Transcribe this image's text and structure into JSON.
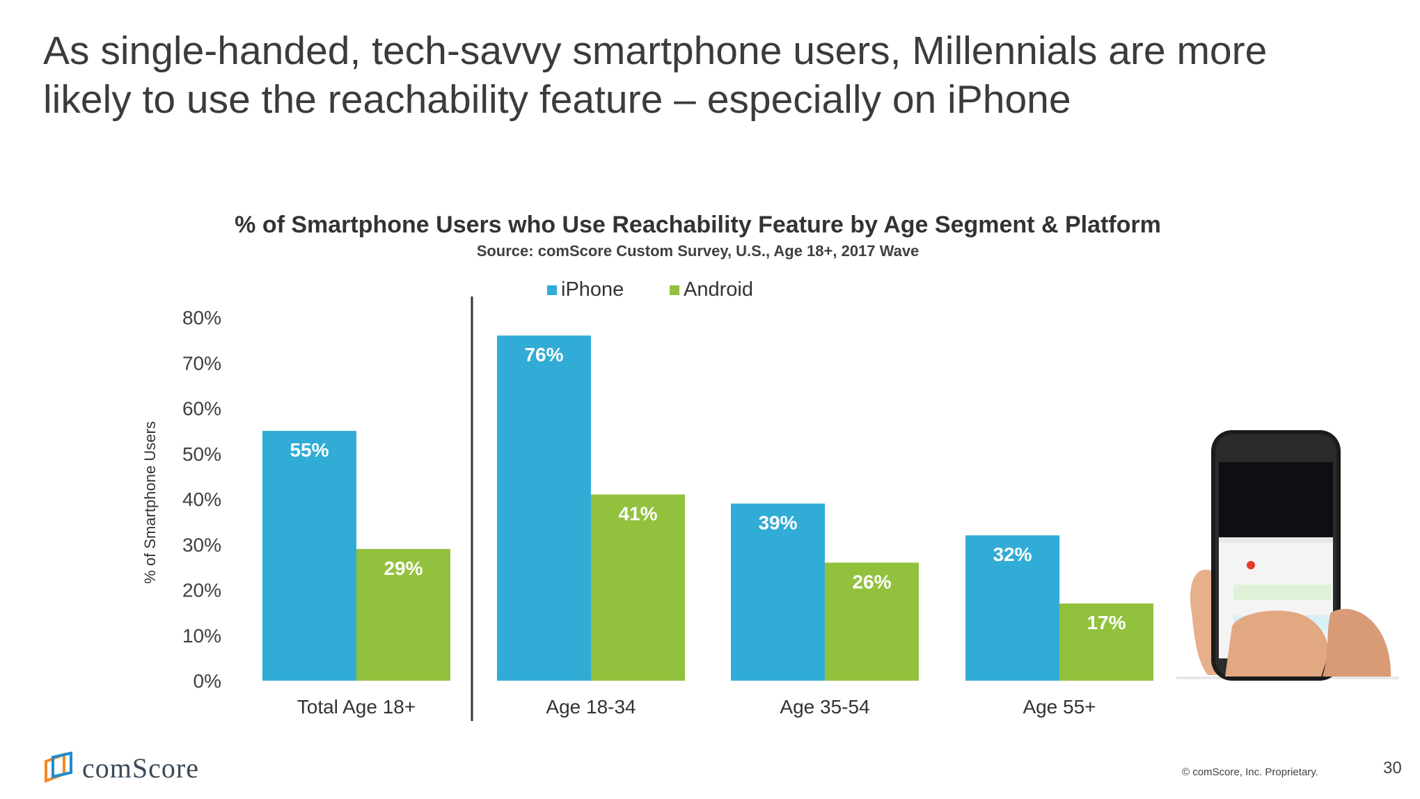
{
  "slide": {
    "title": "As single-handed, tech-savvy smartphone users, Millennials are more likely to use the reachability feature – especially on iPhone",
    "page_number": "30",
    "copyright": "© comScore, Inc. Proprietary.",
    "logo_text": "comScore"
  },
  "colors": {
    "iphone": "#31acd6",
    "android": "#92c13e"
  },
  "chart_data": {
    "type": "bar",
    "title": "% of Smartphone Users who Use Reachability Feature by Age Segment & Platform",
    "subtitle": "Source: comScore Custom Survey, U.S., Age 18+, 2017 Wave",
    "ylabel": "% of Smartphone Users",
    "xlabel": "",
    "ylim": [
      0,
      80
    ],
    "yticks": [
      "0%",
      "10%",
      "20%",
      "30%",
      "40%",
      "50%",
      "60%",
      "70%",
      "80%"
    ],
    "categories": [
      "Total Age 18+",
      "Age 18-34",
      "Age 35-54",
      "Age 55+"
    ],
    "series": [
      {
        "name": "iPhone",
        "values": [
          55,
          76,
          39,
          32
        ],
        "labels": [
          "55%",
          "76%",
          "39%",
          "32%"
        ]
      },
      {
        "name": "Android",
        "values": [
          29,
          41,
          26,
          17
        ],
        "labels": [
          "29%",
          "41%",
          "26%",
          "17%"
        ]
      }
    ],
    "legend_position": "top",
    "grid": false,
    "separator_after_category": "Total Age 18+"
  },
  "image": {
    "icon": "hand-holding-iphone-image"
  }
}
